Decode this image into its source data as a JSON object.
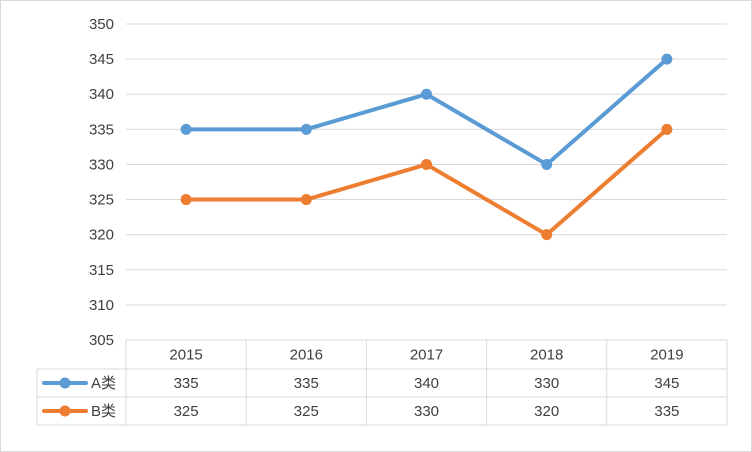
{
  "chart_data": {
    "type": "line",
    "title": "",
    "xlabel": "",
    "ylabel": "",
    "categories": [
      "2015",
      "2016",
      "2017",
      "2018",
      "2019"
    ],
    "ylim": [
      305,
      350
    ],
    "yticks": [
      "305",
      "310",
      "315",
      "320",
      "325",
      "330",
      "335",
      "340",
      "345",
      "350"
    ],
    "grid": true,
    "legend": "data-table-left",
    "series": [
      {
        "name": "A类",
        "values": [
          335,
          335,
          340,
          330,
          345
        ],
        "color": "#5b9bd5"
      },
      {
        "name": "B类",
        "values": [
          325,
          325,
          330,
          320,
          335
        ],
        "color": "#ed7d31"
      }
    ],
    "table": {
      "rows": [
        [
          "335",
          "335",
          "340",
          "330",
          "345"
        ],
        [
          "325",
          "325",
          "330",
          "320",
          "335"
        ]
      ]
    }
  }
}
